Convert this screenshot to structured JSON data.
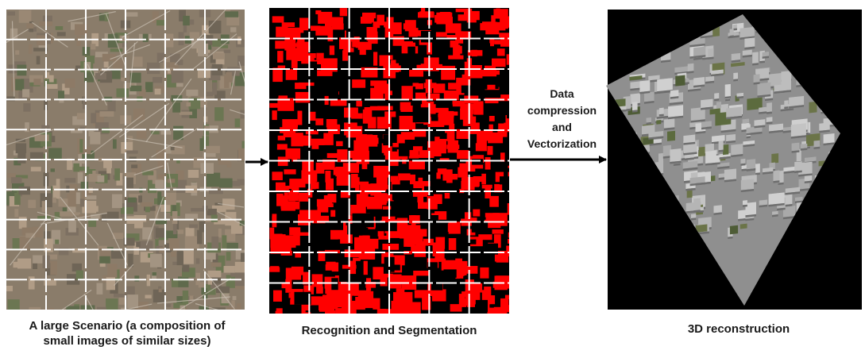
{
  "panels": {
    "aerial": {
      "caption_line1": "A large Scenario (a composition of",
      "caption_line2": "small images of similar sizes)"
    },
    "segmentation": {
      "caption": "Recognition and Segmentation"
    },
    "reconstruction": {
      "caption": "3D reconstruction"
    }
  },
  "arrow_label": {
    "line1": "Data",
    "line2": "compression",
    "line3": "and",
    "line4": "Vectorization"
  },
  "colors": {
    "segmentation_fill": "#ff0000",
    "segmentation_bg": "#000000",
    "grid_lines": "#ffffff",
    "aerial_base": "#8a7c6a",
    "buildings_3d": "#b8b8b8",
    "reconstruction_bg": "#000000"
  }
}
